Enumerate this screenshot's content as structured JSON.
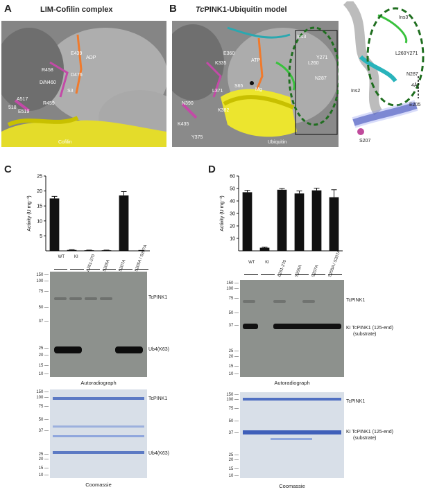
{
  "panels": {
    "a": {
      "letter": "A",
      "title": "LIM-Cofilin complex",
      "labels": [
        "E439",
        "R458",
        "D476",
        "ADP",
        "D/N460",
        "S3",
        "A517",
        "R459",
        "E519",
        "Cofilin",
        "518"
      ]
    },
    "b": {
      "letter": "B",
      "title_prefix": "Tc",
      "title_rest": "PINK1-Ubiquitin model",
      "labels": [
        "E360",
        "K335",
        "ATP",
        "L371",
        "S65",
        "Mg",
        "N390",
        "K435",
        "K382",
        "Y375",
        "Ubiquitin",
        "Ins3",
        "L260",
        "Y271",
        "N287",
        "Ins2",
        "N287",
        "Y271",
        "L260",
        "Ins3",
        "E205",
        "4Å",
        "S207"
      ]
    },
    "c": {
      "letter": "C"
    },
    "d": {
      "letter": "D"
    }
  },
  "chart_data": [
    {
      "type": "bar",
      "panel": "C",
      "ylabel": "Activity (U mg⁻¹)",
      "ylim": [
        0,
        25
      ],
      "yticks": [
        5,
        10,
        15,
        20,
        25
      ],
      "categories": [
        "WT",
        "KI",
        "Δ261-270",
        "S205A",
        "S207A",
        "S205A / S207A"
      ],
      "values": [
        17.5,
        0.3,
        0.2,
        0.2,
        18.5,
        0.1
      ],
      "errors": [
        0.7,
        0.1,
        0.05,
        0.05,
        1.3,
        0.05
      ]
    },
    {
      "type": "bar",
      "panel": "D",
      "ylabel": "Activity (U mg⁻¹)",
      "ylim": [
        0,
        60
      ],
      "yticks": [
        10,
        20,
        30,
        40,
        50,
        60
      ],
      "categories": [
        "WT",
        "KI",
        "Δ261-270",
        "S205A",
        "S207A",
        "S205A / S207A"
      ],
      "values": [
        47,
        2.5,
        49,
        46,
        48.5,
        43
      ],
      "errors": [
        1.5,
        0.5,
        1,
        2,
        1.8,
        6
      ]
    }
  ],
  "gels": {
    "c_lanes": [
      "WT",
      "KI",
      "Δ261-270",
      "S205A",
      "S207A",
      "S205A / S207A"
    ],
    "d_lanes": [
      "WT",
      "KI",
      "Δ261-270",
      "S205A",
      "S207A",
      "S205A / S207A"
    ],
    "markers": [
      "150",
      "100",
      "75",
      "50",
      "37",
      "25",
      "20",
      "15",
      "10"
    ],
    "c_auto_right": [
      "TcPINK1",
      "Ub4(K63)"
    ],
    "c_auto_caption": "Autoradiograph",
    "c_coom_right": [
      "TcPINK1",
      "Ub4(K63)"
    ],
    "c_coom_caption": "Coomassie",
    "d_auto_right": [
      "TcPINK1",
      "KI TcPINK1 (125-end)",
      "(substrate)"
    ],
    "d_auto_caption": "Autoradiograph",
    "d_coom_right": [
      "TcPINK1",
      "KI TcPINK1 (125-end)",
      "(substrate)"
    ],
    "d_coom_caption": "Coomassie"
  }
}
